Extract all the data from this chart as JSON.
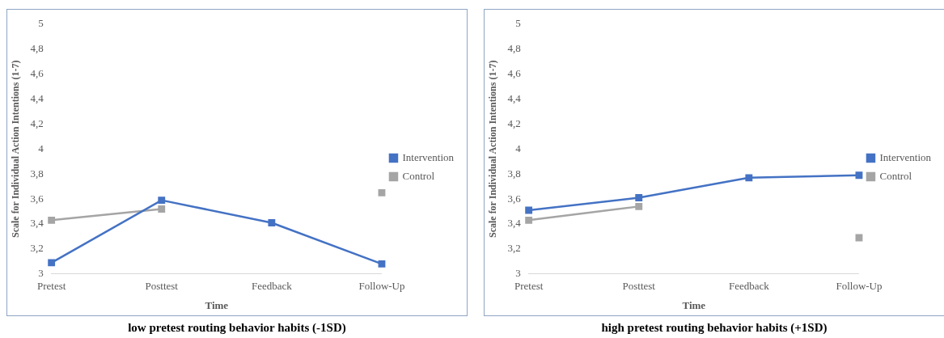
{
  "chart_data": [
    {
      "type": "line",
      "categories": [
        "Pretest",
        "Posttest",
        "Feedback",
        "Follow-Up"
      ],
      "xlabel": "Time",
      "ylabel": "Scale for Individual Action Intentions (1-7)",
      "ylim": [
        3,
        5
      ],
      "yticks": [
        3,
        {
          "value": 3.2,
          "label": "3,2"
        },
        {
          "value": 3.4,
          "label": "3,4"
        },
        {
          "value": 3.6,
          "label": "3,6"
        },
        {
          "value": 3.8,
          "label": "3,8"
        },
        4,
        {
          "value": 4.2,
          "label": "4,2"
        },
        {
          "value": 4.4,
          "label": "4,4"
        },
        {
          "value": 4.6,
          "label": "4,6"
        },
        {
          "value": 4.8,
          "label": "4,8"
        },
        5
      ],
      "grid": false,
      "legend": "right",
      "marker": "square",
      "line_style": "solid",
      "annotations": [
        "low pretest routing behavior habits  (-1SD)"
      ],
      "series": [
        {
          "name": "Intervention",
          "color": "#4472c4",
          "values": [
            3.09,
            3.59,
            3.41,
            3.08
          ]
        },
        {
          "name": "Control",
          "color": "#a5a5a5",
          "values": [
            3.43,
            3.52,
            null,
            3.65
          ]
        }
      ]
    },
    {
      "type": "line",
      "categories": [
        "Pretest",
        "Posttest",
        "Feedback",
        "Follow-Up"
      ],
      "xlabel": "Time",
      "ylabel": "Scale for Individual Action Intentions (1-7)",
      "ylim": [
        3,
        5
      ],
      "yticks": [
        3,
        {
          "value": 3.2,
          "label": "3,2"
        },
        {
          "value": 3.4,
          "label": "3,4"
        },
        {
          "value": 3.6,
          "label": "3,6"
        },
        {
          "value": 3.8,
          "label": "3,8"
        },
        4,
        {
          "value": 4.2,
          "label": "4,2"
        },
        {
          "value": 4.4,
          "label": "4,4"
        },
        {
          "value": 4.6,
          "label": "4,6"
        },
        {
          "value": 4.8,
          "label": "4,8"
        },
        5
      ],
      "grid": false,
      "legend": "right",
      "marker": "square",
      "line_style": "solid",
      "annotations": [
        "high pretest routing behavior habits  (+1SD)"
      ],
      "series": [
        {
          "name": "Intervention",
          "color": "#4472c4",
          "values": [
            3.51,
            3.61,
            3.77,
            3.79
          ]
        },
        {
          "name": "Control",
          "color": "#a5a5a5",
          "values": [
            3.43,
            3.54,
            null,
            3.29
          ]
        }
      ]
    }
  ]
}
